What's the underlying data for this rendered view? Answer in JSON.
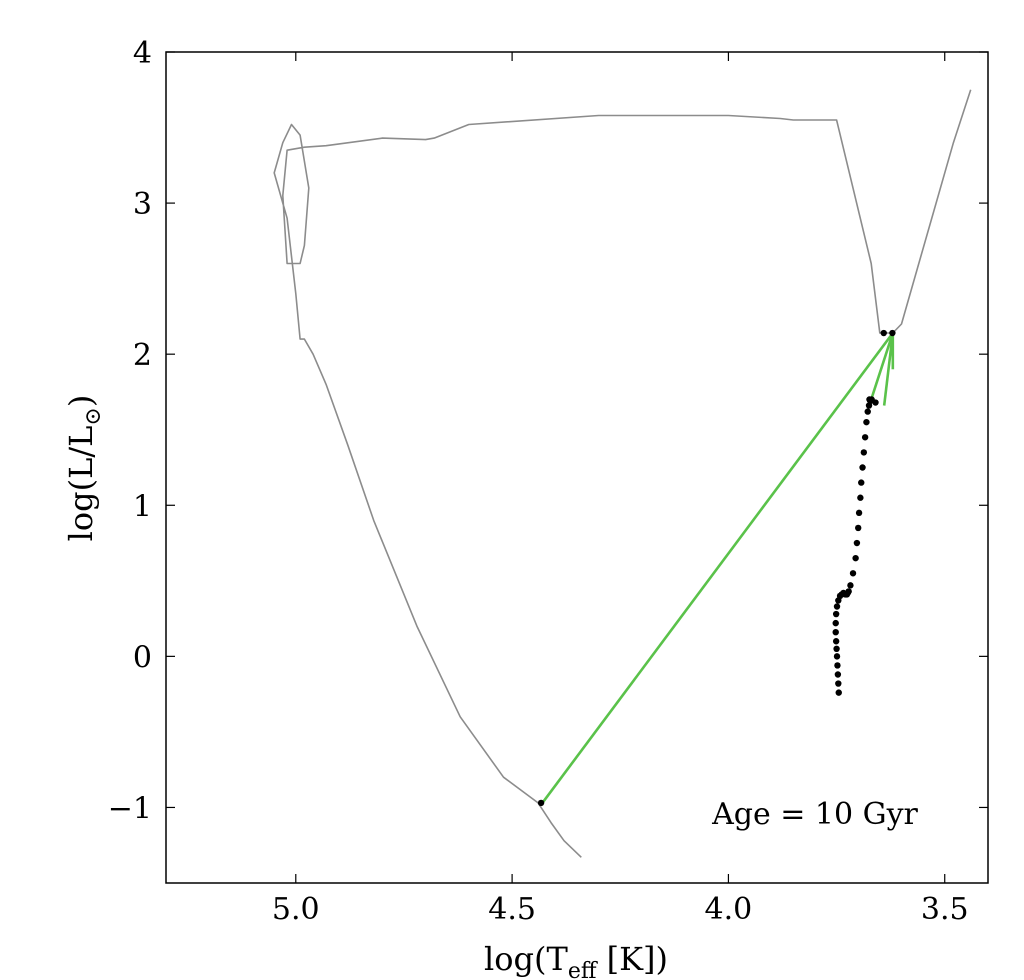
{
  "chart_data": {
    "type": "line",
    "title": "",
    "xlabel": "log(T_eff [K])",
    "ylabel": "log(L/L_sun)",
    "xlim": [
      5.3,
      3.4
    ],
    "ylim": [
      -1.5,
      4
    ],
    "x_inverted": true,
    "grid": false,
    "xticks": [
      5.0,
      4.5,
      4.0,
      3.5
    ],
    "xtick_labels": [
      "5.0",
      "4.5",
      "4.0",
      "3.5"
    ],
    "yticks": [
      -1,
      0,
      1,
      2,
      3,
      4
    ],
    "ytick_labels": [
      "−1",
      "0",
      "1",
      "2",
      "3",
      "4"
    ],
    "annotation": "Age = 10 Gyr",
    "colors": {
      "track": "#8c8c8c",
      "connector": "#5ac24a",
      "points": "#000000"
    },
    "series": [
      {
        "kind": "line",
        "x": [
          3.44,
          3.48,
          3.52,
          3.56,
          3.6,
          3.62,
          3.65,
          3.67,
          3.75,
          3.85,
          3.88,
          4.0,
          4.3,
          4.6,
          4.68,
          4.7,
          4.8,
          4.93,
          4.98,
          5.02,
          5.03,
          5.02,
          4.99,
          4.98,
          4.97,
          4.99,
          5.01,
          5.03,
          5.05,
          5.02,
          5.0,
          4.99,
          4.98,
          4.96,
          4.93,
          4.88,
          4.82,
          4.72,
          4.62,
          4.52,
          4.44,
          4.41,
          4.38,
          4.34
        ],
        "y": [
          3.75,
          3.4,
          3.0,
          2.6,
          2.2,
          2.14,
          2.14,
          2.6,
          3.55,
          3.55,
          3.56,
          3.58,
          3.58,
          3.52,
          3.43,
          3.42,
          3.43,
          3.38,
          3.37,
          3.35,
          3.05,
          2.6,
          2.6,
          2.72,
          3.1,
          3.45,
          3.52,
          3.4,
          3.2,
          2.9,
          2.4,
          2.1,
          2.1,
          2.0,
          1.8,
          1.4,
          0.9,
          0.2,
          -0.4,
          -0.8,
          -0.97,
          -1.1,
          -1.22,
          -1.33
        ]
      },
      {
        "kind": "connector",
        "x": [
          4.43,
          3.62,
          3.64,
          3.62,
          3.67,
          3.62,
          3.62,
          3.62
        ],
        "y": [
          -0.97,
          2.14,
          1.66,
          2.14,
          1.7,
          2.14,
          1.9,
          2.14
        ]
      },
      {
        "kind": "points",
        "x": [
          3.745,
          3.746,
          3.747,
          3.748,
          3.749,
          3.75,
          3.751,
          3.752,
          3.752,
          3.751,
          3.749,
          3.746,
          3.742,
          3.738,
          3.734,
          3.73,
          3.728,
          3.726,
          3.724,
          3.722,
          3.718,
          3.712,
          3.706,
          3.703,
          3.7,
          3.698,
          3.695,
          3.693,
          3.69,
          3.687,
          3.684,
          3.681,
          3.678,
          3.675,
          3.672,
          3.669,
          3.66,
          3.641,
          3.621,
          3.674,
          4.433
        ],
        "y": [
          -0.24,
          -0.18,
          -0.12,
          -0.06,
          0.0,
          0.05,
          0.1,
          0.16,
          0.22,
          0.28,
          0.33,
          0.37,
          0.4,
          0.41,
          0.42,
          0.41,
          0.41,
          0.41,
          0.42,
          0.43,
          0.47,
          0.55,
          0.65,
          0.75,
          0.85,
          0.95,
          1.05,
          1.15,
          1.25,
          1.35,
          1.45,
          1.55,
          1.62,
          1.66,
          1.69,
          1.7,
          1.68,
          2.14,
          2.14,
          1.7,
          -0.97
        ]
      }
    ]
  }
}
